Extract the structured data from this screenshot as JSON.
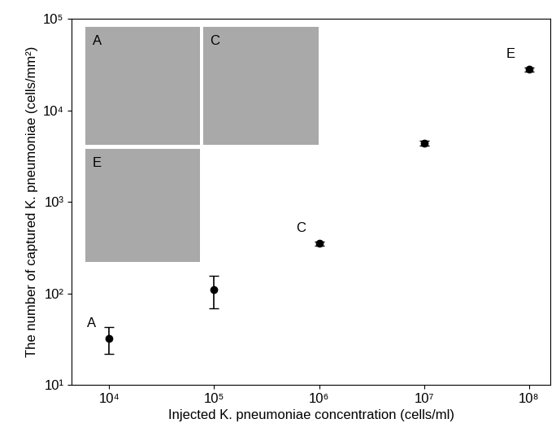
{
  "chart_data": {
    "type": "scatter",
    "x_label": "Injected K. pneumoniae concentration (cells/ml)",
    "y_label": "The number of captured K. pneumoniae (cells/mm²)",
    "x": [
      10000,
      100000,
      1000000,
      10000000,
      100000000
    ],
    "values": [
      32,
      110,
      350,
      4400,
      28000
    ],
    "error_low": [
      10,
      42,
      20,
      250,
      1500
    ],
    "error_high": [
      11,
      45,
      20,
      250,
      1500
    ],
    "point_labels": [
      "A",
      null,
      "C",
      null,
      "E"
    ],
    "inset_labels": [
      "A",
      "C",
      "E"
    ],
    "color": "#000000",
    "marker": "o",
    "log": true,
    "grid": false,
    "xlim": [
      4400,
      160000000
    ],
    "ylim": [
      10,
      100000
    ],
    "xticks": [
      {
        "value": 10000,
        "label": "10⁴"
      },
      {
        "value": 100000,
        "label": "10⁵"
      },
      {
        "value": 1000000,
        "label": "10⁶"
      },
      {
        "value": 10000000,
        "label": "10⁷"
      },
      {
        "value": 100000000,
        "label": "10⁸"
      }
    ],
    "yticks": [
      {
        "value": 10,
        "label": "10¹"
      },
      {
        "value": 100,
        "label": "10²"
      },
      {
        "value": 1000,
        "label": "10³"
      },
      {
        "value": 10000,
        "label": "10⁴"
      },
      {
        "value": 100000,
        "label": "10⁵"
      }
    ]
  }
}
